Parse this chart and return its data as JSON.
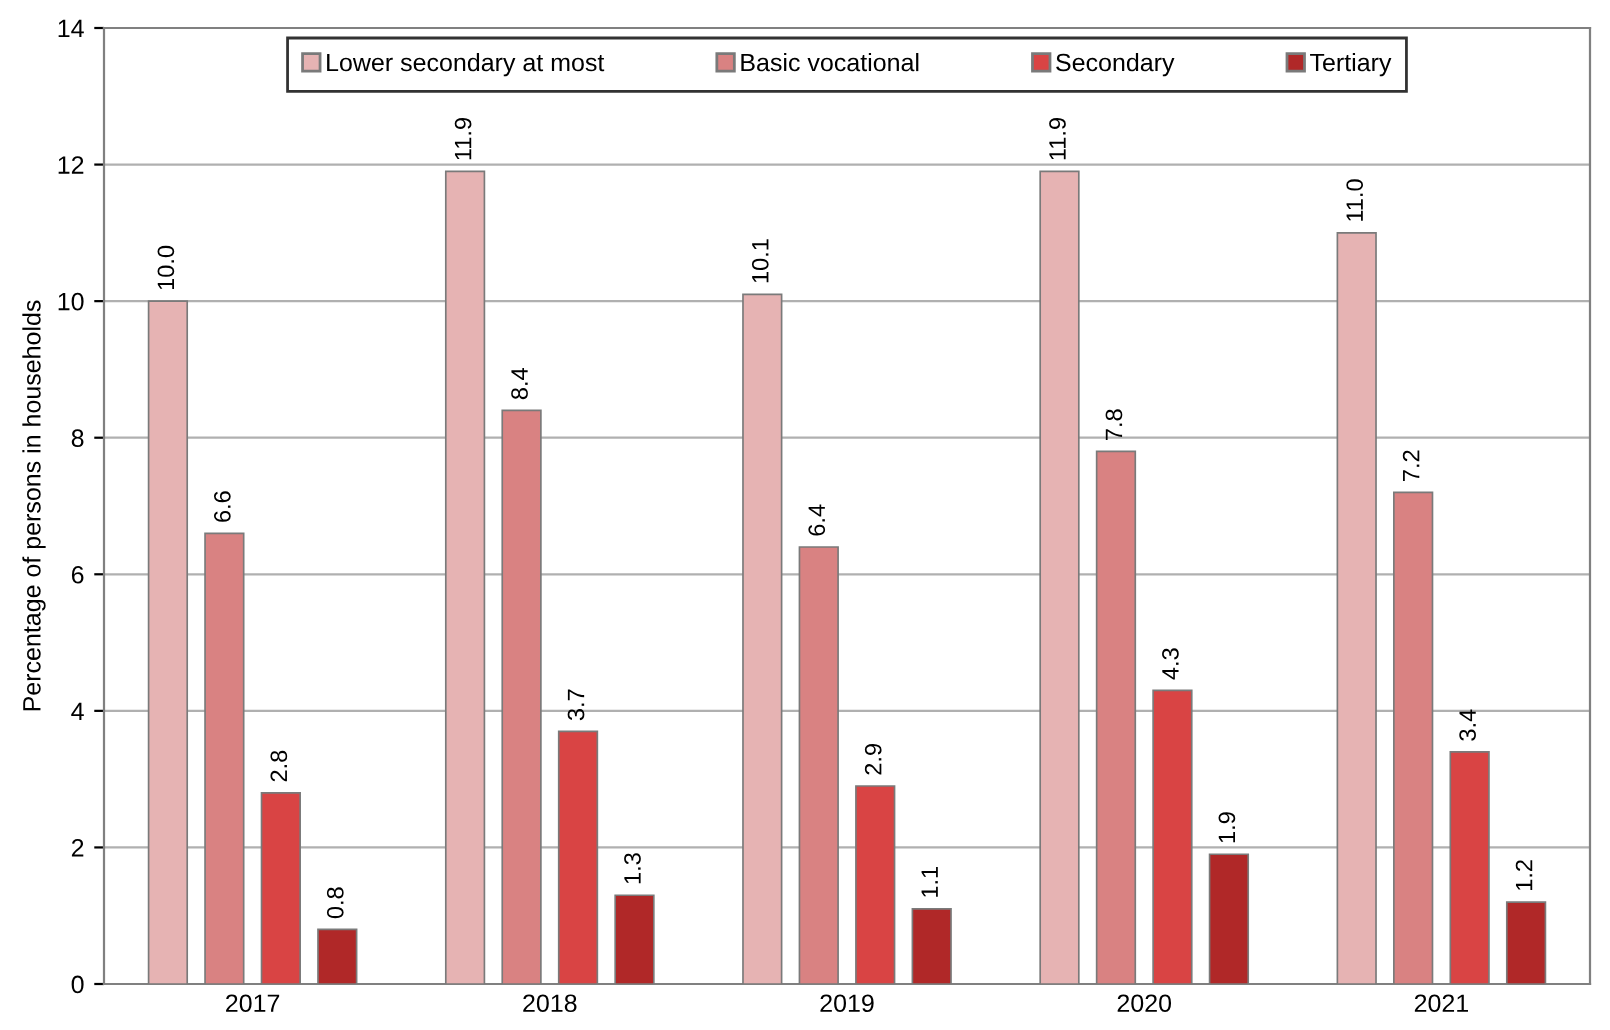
{
  "chart_data": {
    "type": "bar",
    "ylabel": "Percentage of persons in households",
    "categories": [
      "2017",
      "2018",
      "2019",
      "2020",
      "2021"
    ],
    "series": [
      {
        "name": "Lower secondary at most",
        "color": "#e6b3b3",
        "values": [
          10.0,
          11.9,
          10.1,
          11.9,
          11.0
        ],
        "value_labels": [
          "10.0",
          "11.9",
          "10.1",
          "11.9",
          "11.0"
        ]
      },
      {
        "name": "Basic vocational",
        "color": "#d98282",
        "values": [
          6.6,
          8.4,
          6.4,
          7.8,
          7.2
        ],
        "value_labels": [
          "6.6",
          "8.4",
          "6.4",
          "7.8",
          "7.2"
        ]
      },
      {
        "name": "Secondary",
        "color": "#d94444",
        "values": [
          2.8,
          3.7,
          2.9,
          4.3,
          3.4
        ],
        "value_labels": [
          "2.8",
          "3.7",
          "2.9",
          "4.3",
          "3.4"
        ]
      },
      {
        "name": "Tertiary",
        "color": "#b02828",
        "values": [
          0.8,
          1.3,
          1.1,
          1.9,
          1.2
        ],
        "value_labels": [
          "0.8",
          "1.3",
          "1.1",
          "1.9",
          "1.2"
        ]
      }
    ],
    "ylim": [
      0,
      14
    ],
    "yticks": [
      0,
      2,
      4,
      6,
      8,
      10,
      12,
      14
    ],
    "grid": "y",
    "legend": "top"
  }
}
